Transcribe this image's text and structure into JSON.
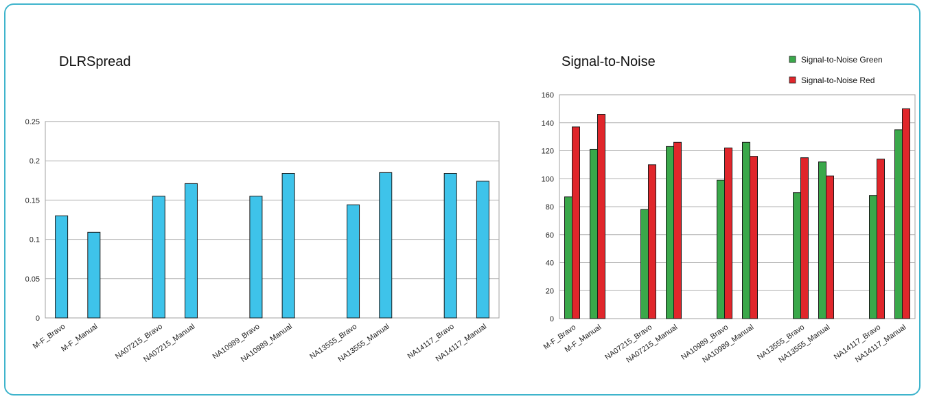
{
  "colors": {
    "frame": "#3fb4cc",
    "dlr_bar": "#3ec3ea",
    "green": "#3aa84a",
    "red": "#e0262b",
    "grid": "#b0b0b0"
  },
  "chart_data": [
    {
      "type": "bar",
      "title": "DLRSpread",
      "categories": [
        "M-F_Bravo",
        "M-F_Manual",
        "",
        "NA07215_Bravo",
        "NA07215_Manual",
        "",
        "NA10989_Bravo",
        "NA10989_Manual",
        "",
        "NA13555_Bravo",
        "NA13555_Manual",
        "",
        "NA14117_Bravo",
        "NA14117_Manual"
      ],
      "values": [
        0.13,
        0.109,
        null,
        0.155,
        0.171,
        null,
        0.155,
        0.184,
        null,
        0.144,
        0.185,
        null,
        0.184,
        0.174
      ],
      "ylim": [
        0,
        0.25
      ],
      "yticks": [
        "0",
        "0.05",
        "0.1",
        "0.15",
        "0.2",
        "0.25"
      ],
      "grid": true
    },
    {
      "type": "bar",
      "title": "Signal-to-Noise",
      "categories": [
        "M-F_Bravo",
        "M-F_Manual",
        "",
        "NA07215_Bravo",
        "NA07215_Manual",
        "",
        "NA10989_Bravo",
        "NA10989_Manual",
        "",
        "NA13555_Bravo",
        "NA13555_Manual",
        "",
        "NA14117_Bravo",
        "NA14117_Manual"
      ],
      "series": [
        {
          "name": "Signal-to-Noise Green",
          "values": [
            87,
            121,
            null,
            78,
            123,
            null,
            99,
            126,
            null,
            90,
            112,
            null,
            88,
            135
          ]
        },
        {
          "name": "Signal-to-Noise Red",
          "values": [
            137,
            146,
            null,
            110,
            126,
            null,
            122,
            116,
            null,
            115,
            102,
            null,
            114,
            150
          ]
        }
      ],
      "ylim": [
        0,
        160
      ],
      "yticks": [
        "0",
        "20",
        "40",
        "60",
        "80",
        "100",
        "120",
        "140",
        "160"
      ],
      "grid": true,
      "legend": "top-right"
    }
  ]
}
